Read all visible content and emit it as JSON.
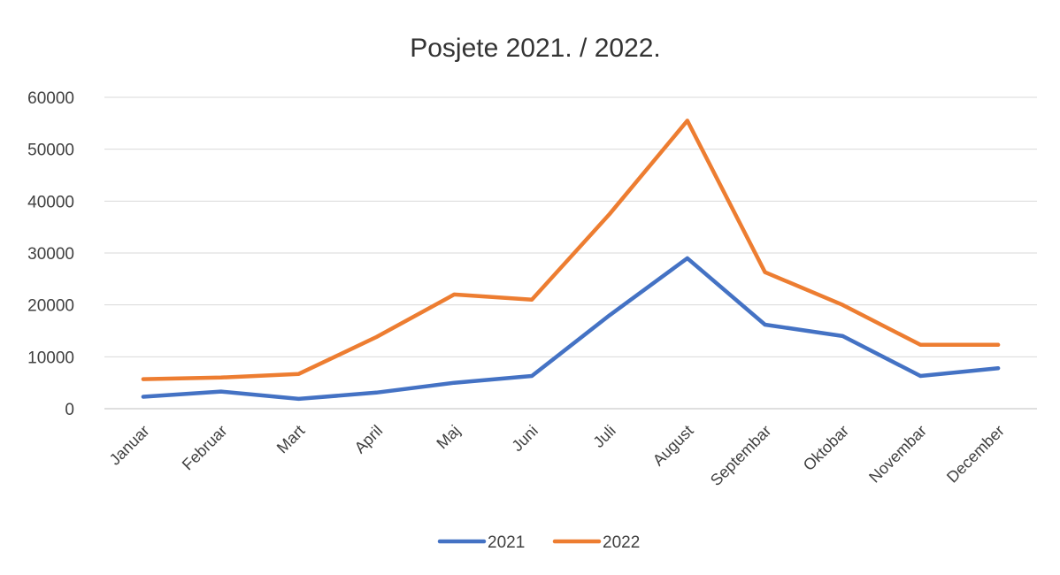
{
  "chart_data": {
    "type": "line",
    "title": "Posjete 2021. / 2022.",
    "categories": [
      "Januar",
      "Februar",
      "Mart",
      "April",
      "Maj",
      "Juni",
      "Juli",
      "August",
      "Septembar",
      "Oktobar",
      "Novembar",
      "December"
    ],
    "series": [
      {
        "name": "2021",
        "color": "#4472c4",
        "values": [
          2300,
          3300,
          1900,
          3100,
          5000,
          6300,
          18000,
          29000,
          16200,
          14000,
          6300,
          7800
        ]
      },
      {
        "name": "2022",
        "color": "#ed7d31",
        "values": [
          5700,
          6000,
          6700,
          13800,
          22000,
          21000,
          37500,
          55500,
          26300,
          20000,
          12300,
          12300
        ]
      }
    ],
    "ylim": [
      0,
      60000
    ],
    "yticks": [
      "0",
      "10000",
      "20000",
      "30000",
      "40000",
      "50000",
      "60000"
    ],
    "grid": true,
    "legend_position": "bottom"
  }
}
